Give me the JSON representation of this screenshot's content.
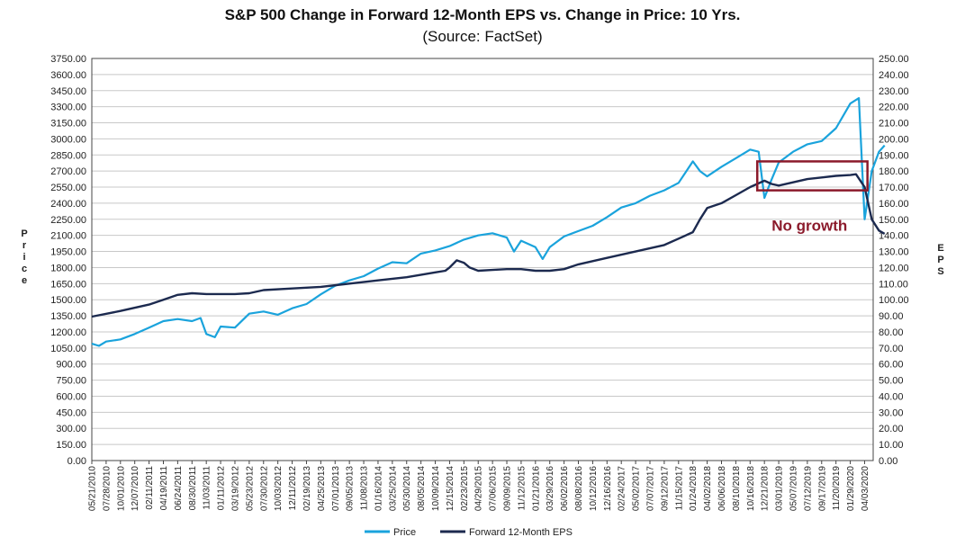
{
  "chart_data": {
    "type": "line",
    "title": "S&P 500 Change in Forward 12-Month EPS vs. Change in Price: 10 Yrs.",
    "subtitle": "(Source: FactSet)",
    "ylabel_left": "Price",
    "ylabel_right": "EPS",
    "ylim_left": [
      0,
      3750
    ],
    "ylim_right": [
      0,
      250
    ],
    "left_ticks": [
      "0.00",
      "150.00",
      "300.00",
      "450.00",
      "600.00",
      "750.00",
      "900.00",
      "1050.00",
      "1200.00",
      "1350.00",
      "1500.00",
      "1650.00",
      "1800.00",
      "1950.00",
      "2100.00",
      "2250.00",
      "2400.00",
      "2550.00",
      "2700.00",
      "2850.00",
      "3000.00",
      "3150.00",
      "3300.00",
      "3450.00",
      "3600.00",
      "3750.00"
    ],
    "right_ticks": [
      "0.00",
      "10.00",
      "20.00",
      "30.00",
      "40.00",
      "50.00",
      "60.00",
      "70.00",
      "80.00",
      "90.00",
      "100.00",
      "110.00",
      "120.00",
      "130.00",
      "140.00",
      "150.00",
      "160.00",
      "170.00",
      "180.00",
      "190.00",
      "200.00",
      "210.00",
      "220.00",
      "230.00",
      "240.00",
      "250.00"
    ],
    "x_ticks": [
      "05/21/2010",
      "07/28/2010",
      "10/01/2010",
      "12/07/2010",
      "02/11/2011",
      "04/19/2011",
      "06/24/2011",
      "08/30/2011",
      "11/03/2011",
      "01/11/2012",
      "03/19/2012",
      "05/23/2012",
      "07/30/2012",
      "10/03/2012",
      "12/11/2012",
      "02/19/2013",
      "04/25/2013",
      "07/01/2013",
      "09/05/2013",
      "11/08/2013",
      "01/16/2014",
      "03/25/2014",
      "05/30/2014",
      "08/05/2014",
      "10/09/2014",
      "12/15/2014",
      "02/23/2015",
      "04/29/2015",
      "07/06/2015",
      "09/09/2015",
      "11/12/2015",
      "01/21/2016",
      "03/29/2016",
      "06/02/2016",
      "08/08/2016",
      "10/12/2016",
      "12/16/2016",
      "02/24/2017",
      "05/02/2017",
      "07/07/2017",
      "09/12/2017",
      "11/15/2017",
      "01/24/2018",
      "04/02/2018",
      "06/06/2018",
      "08/10/2018",
      "10/16/2018",
      "12/21/2018",
      "03/01/2019",
      "05/07/2019",
      "07/12/2019",
      "09/17/2019",
      "11/20/2019",
      "01/29/2020",
      "04/03/2020"
    ],
    "series": [
      {
        "name": "Price",
        "color": "#1aa3dc",
        "axis": "left",
        "points": [
          [
            0,
            1090
          ],
          [
            0.5,
            1070
          ],
          [
            1,
            1110
          ],
          [
            2,
            1130
          ],
          [
            3,
            1180
          ],
          [
            4,
            1240
          ],
          [
            5,
            1300
          ],
          [
            6,
            1320
          ],
          [
            7,
            1300
          ],
          [
            7.6,
            1330
          ],
          [
            8,
            1180
          ],
          [
            8.6,
            1150
          ],
          [
            9,
            1250
          ],
          [
            10,
            1240
          ],
          [
            11,
            1370
          ],
          [
            12,
            1390
          ],
          [
            13,
            1360
          ],
          [
            14,
            1420
          ],
          [
            15,
            1460
          ],
          [
            16,
            1550
          ],
          [
            17,
            1630
          ],
          [
            18,
            1680
          ],
          [
            19,
            1720
          ],
          [
            20,
            1790
          ],
          [
            21,
            1850
          ],
          [
            22,
            1840
          ],
          [
            23,
            1930
          ],
          [
            24,
            1960
          ],
          [
            25,
            2000
          ],
          [
            26,
            2060
          ],
          [
            27,
            2100
          ],
          [
            28,
            2120
          ],
          [
            29,
            2080
          ],
          [
            29.5,
            1950
          ],
          [
            30,
            2050
          ],
          [
            31,
            1990
          ],
          [
            31.5,
            1880
          ],
          [
            32,
            1990
          ],
          [
            33,
            2090
          ],
          [
            34,
            2140
          ],
          [
            35,
            2190
          ],
          [
            36,
            2270
          ],
          [
            37,
            2360
          ],
          [
            38,
            2400
          ],
          [
            39,
            2470
          ],
          [
            40,
            2520
          ],
          [
            41,
            2590
          ],
          [
            42,
            2790
          ],
          [
            42.5,
            2700
          ],
          [
            43,
            2650
          ],
          [
            44,
            2740
          ],
          [
            45,
            2820
          ],
          [
            46,
            2900
          ],
          [
            46.6,
            2880
          ],
          [
            47,
            2450
          ],
          [
            47.5,
            2620
          ],
          [
            48,
            2780
          ],
          [
            49,
            2880
          ],
          [
            50,
            2950
          ],
          [
            51,
            2980
          ],
          [
            52,
            3100
          ],
          [
            53,
            3330
          ],
          [
            53.6,
            3380
          ],
          [
            54,
            2250
          ],
          [
            54.5,
            2700
          ],
          [
            55,
            2880
          ],
          [
            55.4,
            2940
          ]
        ]
      },
      {
        "name": "Forward 12-Month EPS",
        "color": "#1c2a4f",
        "axis": "right",
        "points": [
          [
            0,
            89.5
          ],
          [
            2,
            93
          ],
          [
            4,
            97
          ],
          [
            5,
            100
          ],
          [
            6,
            103
          ],
          [
            7,
            104
          ],
          [
            8,
            103.5
          ],
          [
            10,
            103.5
          ],
          [
            11,
            104
          ],
          [
            12,
            106
          ],
          [
            14,
            107
          ],
          [
            16,
            108
          ],
          [
            18,
            110
          ],
          [
            20,
            112
          ],
          [
            22,
            114
          ],
          [
            24,
            117
          ],
          [
            24.7,
            118
          ],
          [
            25,
            120
          ],
          [
            25.5,
            124.5
          ],
          [
            26,
            123
          ],
          [
            26.4,
            120
          ],
          [
            27,
            118
          ],
          [
            28,
            118.5
          ],
          [
            29,
            119
          ],
          [
            30,
            119
          ],
          [
            31,
            118
          ],
          [
            32,
            118
          ],
          [
            33,
            119
          ],
          [
            34,
            122
          ],
          [
            35,
            124
          ],
          [
            36,
            126
          ],
          [
            38,
            130
          ],
          [
            40,
            134
          ],
          [
            41,
            138
          ],
          [
            42,
            142
          ],
          [
            42.5,
            150
          ],
          [
            43,
            157
          ],
          [
            44,
            160
          ],
          [
            45,
            165
          ],
          [
            46,
            170
          ],
          [
            47,
            174
          ],
          [
            47.5,
            172
          ],
          [
            48,
            171
          ],
          [
            49,
            173
          ],
          [
            50,
            175
          ],
          [
            51,
            176
          ],
          [
            52,
            177
          ],
          [
            53,
            177.5
          ],
          [
            53.4,
            178
          ],
          [
            54,
            170
          ],
          [
            54.5,
            150
          ],
          [
            55,
            143
          ],
          [
            55.4,
            141
          ]
        ]
      }
    ],
    "annotation": {
      "text": "No growth",
      "color": "#8b1a2b",
      "box_x_range": [
        46.5,
        54.2
      ],
      "box_eps_range": [
        168,
        186
      ]
    },
    "legend": {
      "position": "bottom",
      "entries": [
        {
          "label": "Price",
          "color": "#1aa3dc"
        },
        {
          "label": "Forward 12-Month EPS",
          "color": "#1c2a4f"
        }
      ]
    }
  }
}
